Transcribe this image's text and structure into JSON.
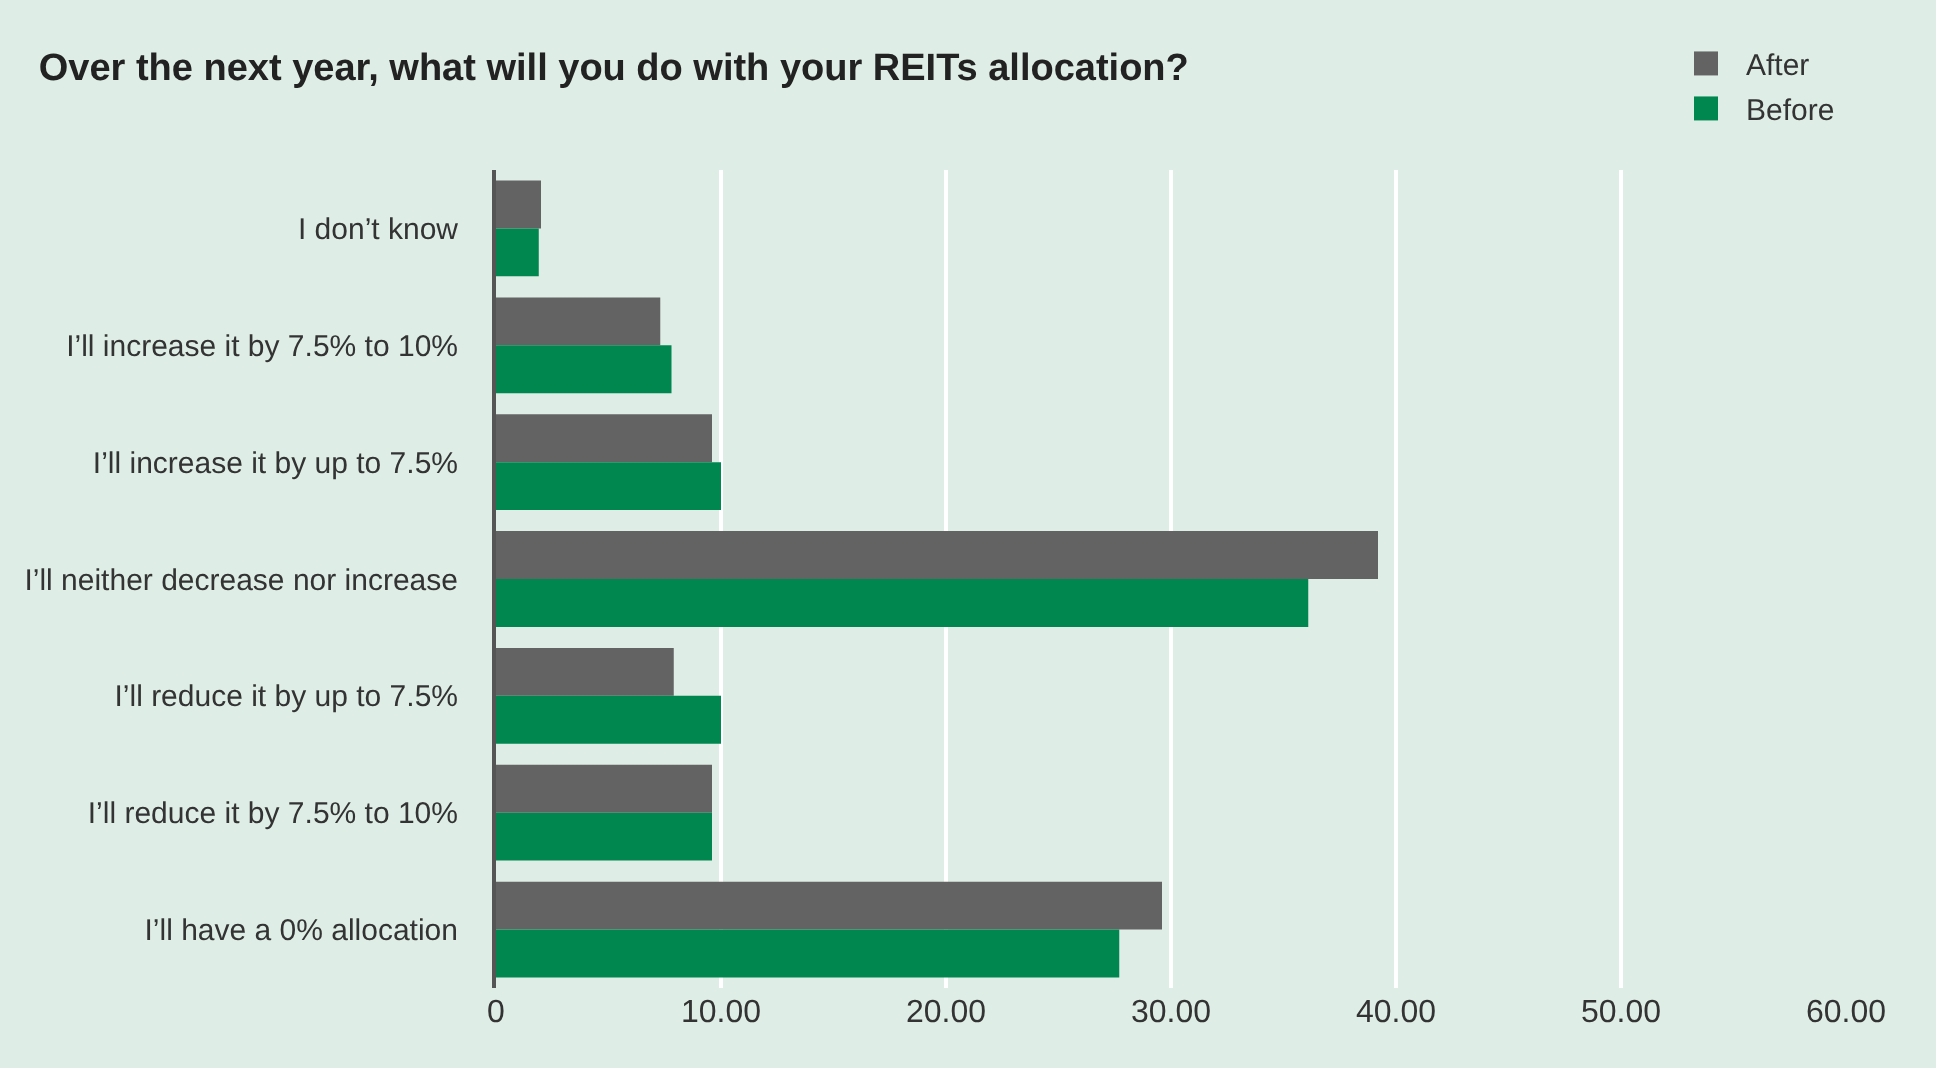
{
  "chart_data": {
    "type": "bar",
    "orientation": "horizontal",
    "title": "Over the next year, what will you do with your REITs allocation?",
    "categories": [
      "I don’t know",
      "I’ll increase it by 7.5% to 10%",
      "I’ll increase it by up to 7.5%",
      "I’ll neither decrease nor increase",
      "I’ll reduce it by up to 7.5%",
      "I’ll reduce it by 7.5% to 10%",
      "I’ll have a 0% allocation"
    ],
    "series": [
      {
        "name": "After",
        "color": "#636363",
        "values": [
          2.0,
          7.3,
          9.6,
          39.2,
          7.9,
          9.6,
          29.6
        ]
      },
      {
        "name": "Before",
        "color": "#00874f",
        "values": [
          1.9,
          7.8,
          10.0,
          36.1,
          10.0,
          9.6,
          27.7
        ]
      }
    ],
    "xlim": [
      0,
      60
    ],
    "xticks": [
      0,
      {
        "value": 10,
        "label": "10.00"
      },
      {
        "value": 20,
        "label": "20.00"
      },
      {
        "value": 30,
        "label": "30.00"
      },
      {
        "value": 40,
        "label": "40.00"
      },
      {
        "value": 50,
        "label": "50.00"
      },
      {
        "value": 60,
        "label": "60.00"
      }
    ],
    "grid": "x",
    "legend": "top right"
  }
}
